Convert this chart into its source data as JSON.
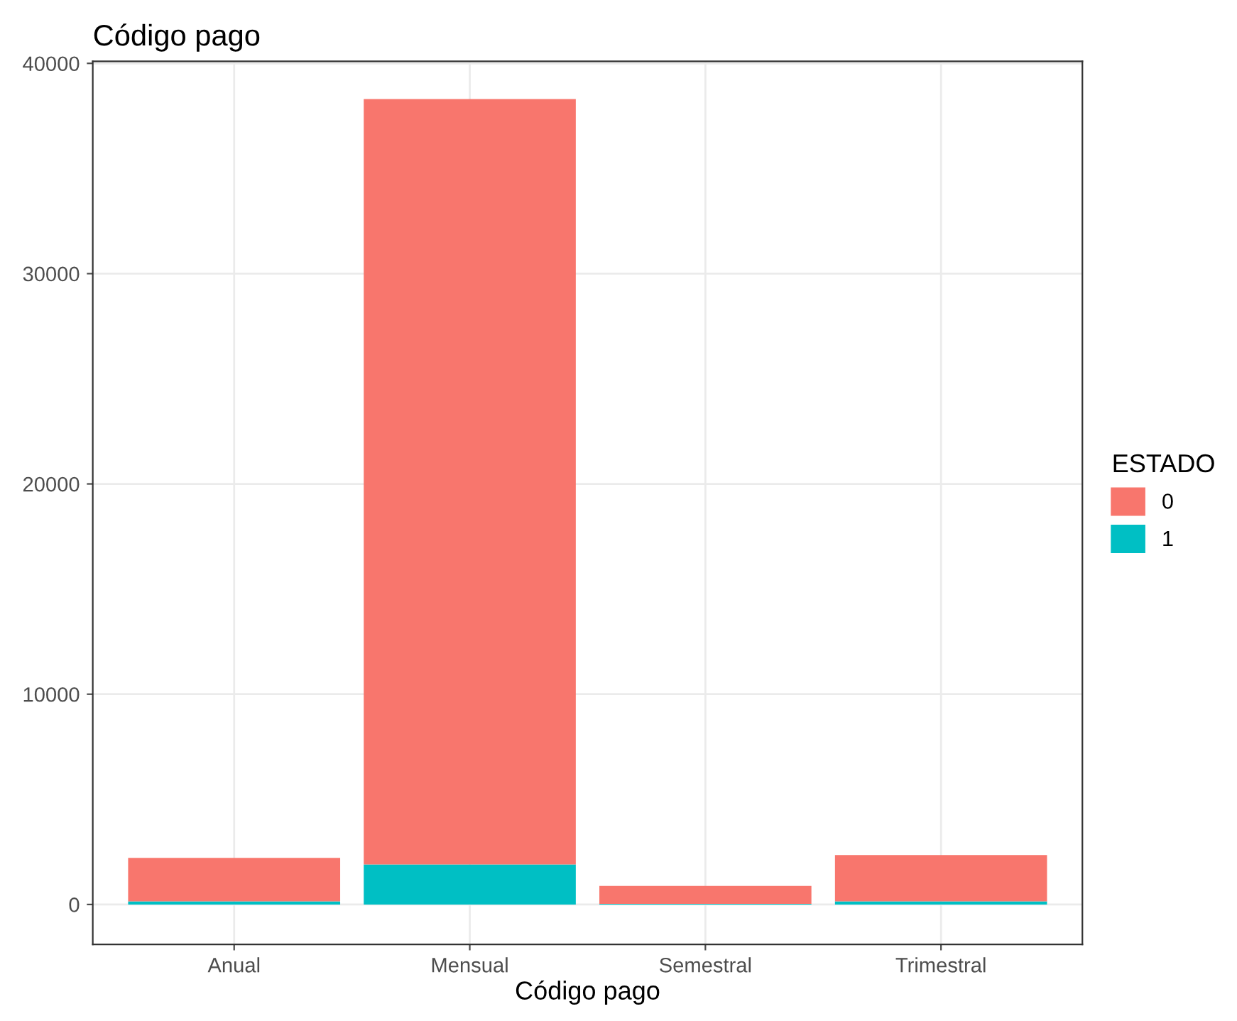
{
  "chart_data": {
    "type": "bar",
    "title": "Código pago",
    "xlabel": "Código pago",
    "legend_title": "ESTADO",
    "categories": [
      "Anual",
      "Mensual",
      "Semestral",
      "Trimestral"
    ],
    "stacked": true,
    "series": [
      {
        "name": "1",
        "color": "#00bfc4",
        "values": [
          150,
          1900,
          30,
          150
        ]
      },
      {
        "name": "0",
        "color": "#f8766d",
        "values": [
          2070,
          36400,
          850,
          2200
        ]
      }
    ],
    "ylim": [
      -1900,
      40100
    ],
    "yticks": [
      0,
      10000,
      20000,
      30000,
      40000
    ],
    "grid": true,
    "legend": "right"
  }
}
